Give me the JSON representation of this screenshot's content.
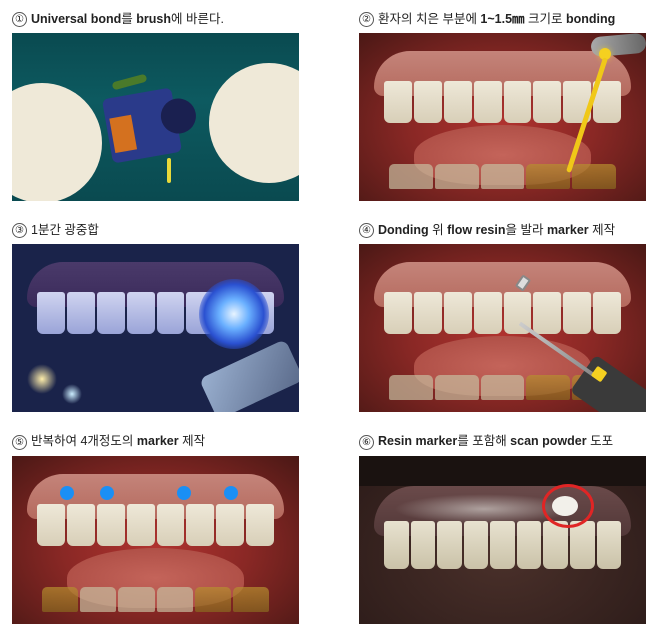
{
  "steps": [
    {
      "num": "①",
      "before": "",
      "bold": "Universal bond",
      "after": "를 ",
      "bold2": "brush",
      "after2": "에 바른다."
    },
    {
      "num": "②",
      "before": "환자의 치은 부분에 ",
      "bold": "1~1.5㎜",
      "after": " 크기로 ",
      "bold2": "bonding",
      "after2": ""
    },
    {
      "num": "③",
      "before": "1분간 광중합",
      "bold": "",
      "after": "",
      "bold2": "",
      "after2": ""
    },
    {
      "num": "④",
      "before": "",
      "bold": "Donding",
      "after": " 위 ",
      "bold2": "flow resin",
      "after2": "을 발라 ",
      "bold3": "marker",
      "after3": " 제작"
    },
    {
      "num": "⑤",
      "before": "반복하여 4개정도의 ",
      "bold": "marker",
      "after": " 제작",
      "bold2": "",
      "after2": ""
    },
    {
      "num": "⑥",
      "before": "",
      "bold": "Resin marker",
      "after": "를 포함해 ",
      "bold2": "scan powder",
      "after2": " 도포"
    }
  ]
}
